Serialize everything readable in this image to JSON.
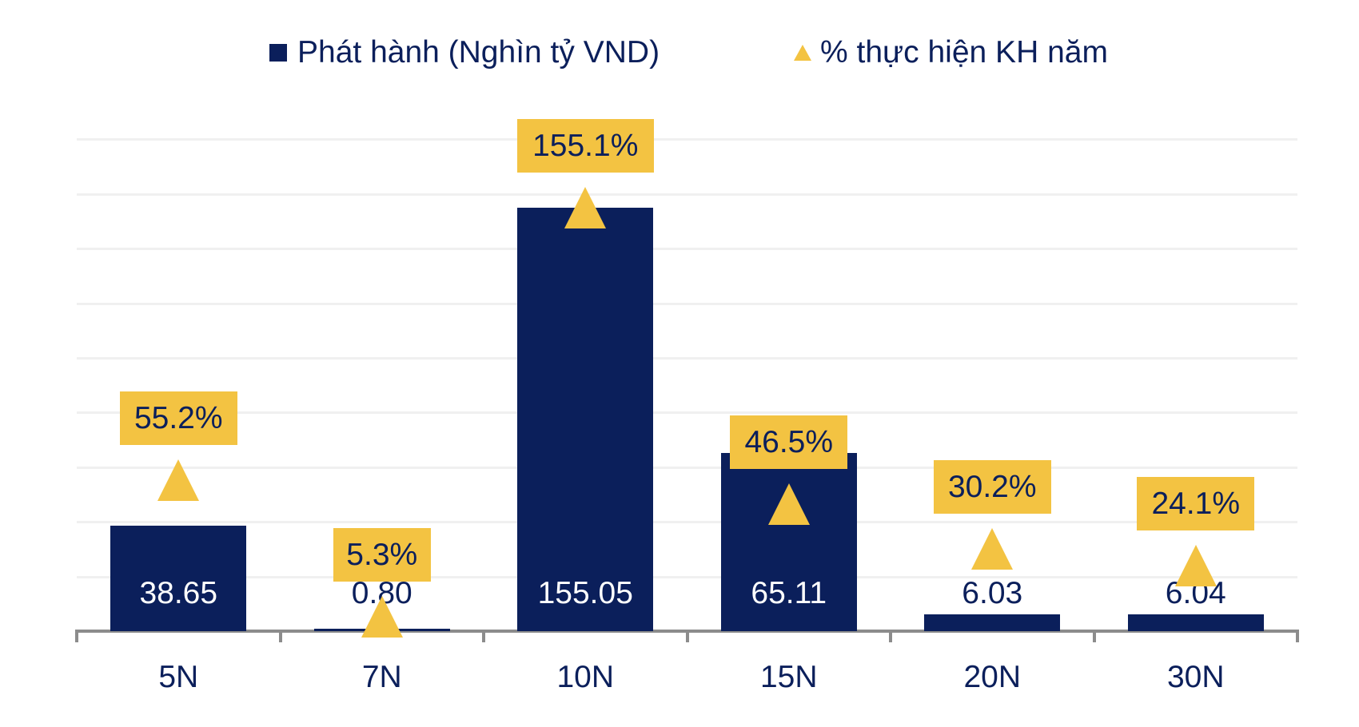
{
  "title_partial": "",
  "legend": {
    "bar_label": "Phát hành (Nghìn tỷ VND)",
    "marker_label": "% thực hiện KH năm"
  },
  "colors": {
    "bar": "#0B1F5B",
    "marker": "#F3C342",
    "text": "#0B1F5B",
    "grid": "#F0F0F0",
    "axis": "#8C8C8C"
  },
  "chart_data": {
    "type": "bar",
    "title": "",
    "xlabel": "",
    "ylabel": "",
    "categories": [
      "5N",
      "7N",
      "10N",
      "15N",
      "20N",
      "30N"
    ],
    "series": [
      {
        "name": "Phát hành (Nghìn tỷ VND)",
        "type": "bar",
        "values": [
          38.65,
          0.8,
          155.05,
          65.11,
          6.03,
          6.04
        ],
        "labels": [
          "38.65",
          "0.80",
          "155.05",
          "65.11",
          "6.03",
          "6.04"
        ]
      },
      {
        "name": "% thực hiện KH năm",
        "type": "scatter-triangle",
        "values": [
          55.2,
          5.3,
          155.1,
          46.5,
          30.2,
          24.1
        ],
        "labels": [
          "55.2%",
          "5.3%",
          "155.1%",
          "46.5%",
          "30.2%",
          "24.1%"
        ]
      }
    ],
    "ylim": [
      0,
      180
    ],
    "grid": true,
    "gridline_step": 20,
    "legend_position": "top"
  }
}
